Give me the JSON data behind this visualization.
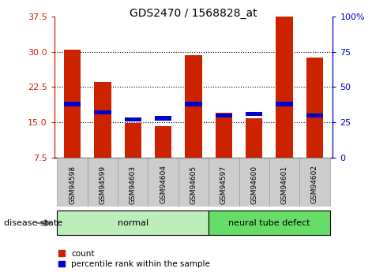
{
  "title": "GDS2470 / 1568828_at",
  "samples": [
    "GSM94598",
    "GSM94599",
    "GSM94603",
    "GSM94604",
    "GSM94605",
    "GSM94597",
    "GSM94600",
    "GSM94601",
    "GSM94602"
  ],
  "count_values": [
    30.5,
    23.5,
    14.8,
    14.2,
    29.3,
    17.0,
    15.8,
    37.4,
    28.8
  ],
  "percentile_values": [
    38,
    32,
    27,
    28,
    38,
    30,
    31,
    38,
    30
  ],
  "groups": [
    {
      "label": "normal",
      "start": 0,
      "end": 5,
      "color": "#bbeebb"
    },
    {
      "label": "neural tube defect",
      "start": 5,
      "end": 9,
      "color": "#66dd66"
    }
  ],
  "ylim_left": [
    7.5,
    37.5
  ],
  "ylim_right": [
    0,
    100
  ],
  "yticks_left": [
    7.5,
    15.0,
    22.5,
    30.0,
    37.5
  ],
  "yticks_right": [
    0,
    25,
    50,
    75,
    100
  ],
  "left_color": "#cc2200",
  "right_color": "#0000cc",
  "bar_color": "#cc2200",
  "blue_marker_color": "#0000cc",
  "bar_bottom": 7.5,
  "grid_color": "black",
  "legend_items": [
    "count",
    "percentile rank within the sample"
  ],
  "disease_state_label": "disease state",
  "fig_width": 4.9,
  "fig_height": 3.45,
  "bar_width": 0.55
}
